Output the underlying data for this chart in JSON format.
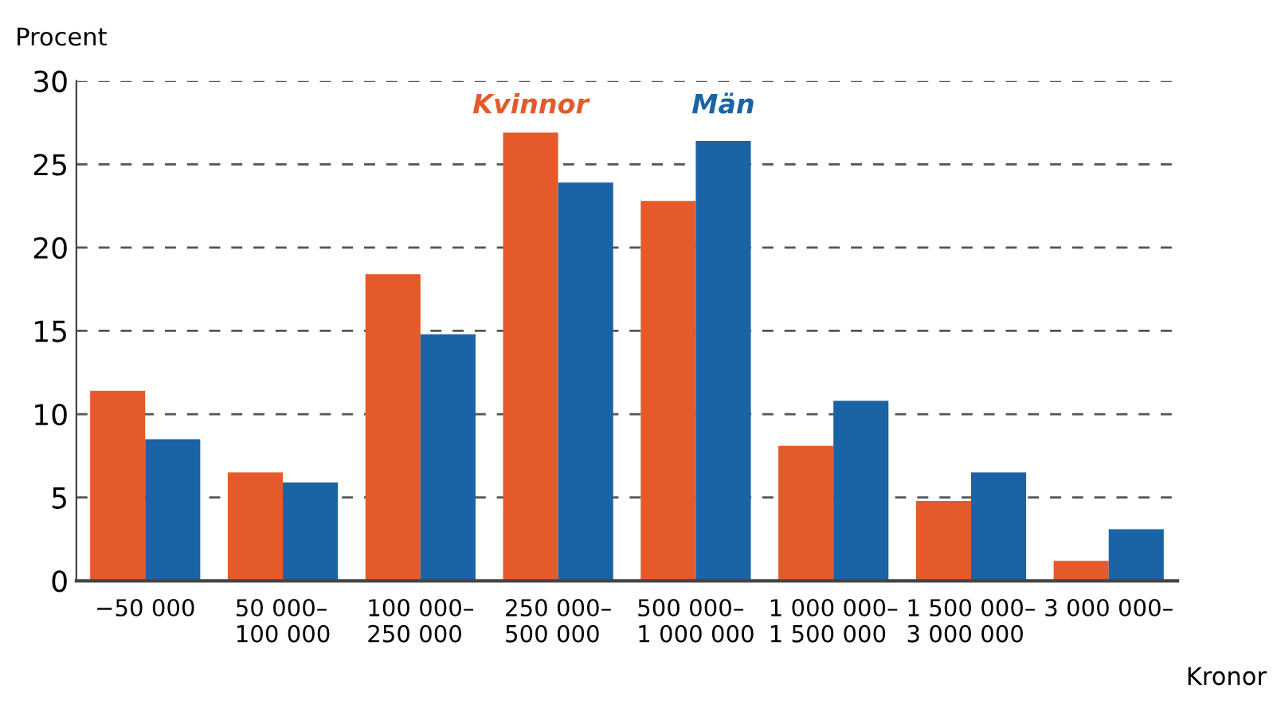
{
  "chart_data": {
    "type": "bar",
    "ylabel": "Procent",
    "xlabel": "Kronor",
    "categories": [
      "−50 000",
      "50 000–\n100 000",
      "100 000–\n250 000",
      "250 000–\n500 000",
      "500 000–\n1 000 000",
      "1 000 000–\n1 500 000",
      "1 500 000–\n3 000 000",
      "3 000 000–"
    ],
    "series": [
      {
        "name": "Kvinnor",
        "color": "#e55a2b",
        "values": [
          11.4,
          6.5,
          18.4,
          26.9,
          22.8,
          8.1,
          4.8,
          1.2
        ]
      },
      {
        "name": "Män",
        "color": "#1a64a6",
        "values": [
          8.5,
          5.9,
          14.8,
          23.9,
          26.4,
          10.8,
          6.5,
          3.1
        ]
      }
    ],
    "ylim": [
      0,
      30
    ],
    "yticks": [
      0,
      5,
      10,
      15,
      20,
      25,
      30
    ],
    "grid": "y",
    "legend": false
  }
}
